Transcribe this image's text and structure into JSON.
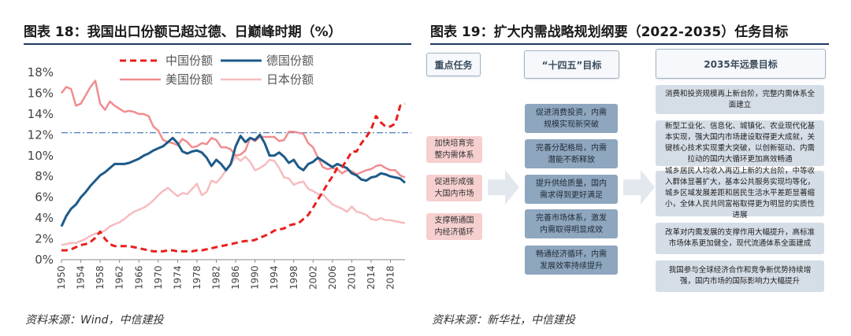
{
  "left": {
    "title": "图表 18：我国出口份额已超过德、日巅峰时期（%）",
    "source": "资料来源：Wind，中信建投"
  },
  "right": {
    "title": "图表 19：扩大内需战略规划纲要（2022-2035）任务目标",
    "source": "资料来源：新华社，中信建投",
    "col_heads": [
      "重点任务",
      "“十四五”目标",
      "2035年远景目标"
    ],
    "tasks": [
      "加快培育完整内需体系",
      "促进形成强大国内市场",
      "支撑畅通国内经济循环"
    ],
    "goals_14th": [
      "促进消费投资，内需规模实现新突破",
      "完善分配格局，内需潜能不断释放",
      "提升供给质量，国内需求得到更好满足",
      "完善市场体系，激发内需取得明显成效",
      "畅通经济循环，内需发展效率持续提升"
    ],
    "goals_2035": [
      "消费和投资规模再上新台阶，完整内需体系全面建立",
      "新型工业化、信息化、城镇化、农业现代化基本实现，强大国内市场建设取得更大成就，关键核心技术实现重大突破，以创新驱动、内需拉动的国内大循环更加高效畅通",
      "城乡居民人均收入再迈上新的大台阶，中等收入群体显著扩大，基本公共服务实现均等化，城乡区域发展差距和居民生活水平差距显著缩小，全体人民共同富裕取得更为明显的实质性进展",
      "改革对内需发展的支撑作用大幅提升，高标准市场体系更加健全，现代流通体系全面建成",
      "我国参与全球经济合作和竞争新优势持续增强，国内市场的国际影响力大幅提升"
    ]
  },
  "colors": {
    "china": "#e8201d",
    "germany": "#1d5a8a",
    "usa": "#f08d8f",
    "japan": "#f6bcbf",
    "refline": "#3a6fb0",
    "pink_box": "#f6cfcf",
    "blue_box": "#8ea6be",
    "grey_box": "#d5dde6"
  },
  "chart_data": {
    "type": "line",
    "xlabel": "",
    "ylabel": "",
    "ylim": [
      0,
      18
    ],
    "yticks": [
      "0%",
      "2%",
      "4%",
      "6%",
      "8%",
      "10%",
      "12%",
      "14%",
      "16%",
      "18%"
    ],
    "xticks": [
      "1950",
      "1954",
      "1958",
      "1962",
      "1966",
      "1970",
      "1974",
      "1978",
      "1982",
      "1986",
      "1990",
      "1994",
      "1998",
      "2002",
      "2006",
      "2010",
      "2014",
      "2018"
    ],
    "xlim": [
      1950,
      2021
    ],
    "reference_line": 12.2,
    "legend_position": "top",
    "years": [
      1950,
      1951,
      1952,
      1953,
      1954,
      1955,
      1956,
      1957,
      1958,
      1959,
      1960,
      1961,
      1962,
      1963,
      1964,
      1965,
      1966,
      1967,
      1968,
      1969,
      1970,
      1971,
      1972,
      1973,
      1974,
      1975,
      1976,
      1977,
      1978,
      1979,
      1980,
      1981,
      1982,
      1983,
      1984,
      1985,
      1986,
      1987,
      1988,
      1989,
      1990,
      1991,
      1992,
      1993,
      1994,
      1995,
      1996,
      1997,
      1998,
      1999,
      2000,
      2001,
      2002,
      2003,
      2004,
      2005,
      2006,
      2007,
      2008,
      2009,
      2010,
      2011,
      2012,
      2013,
      2014,
      2015,
      2016,
      2017,
      2018,
      2019,
      2020,
      2021
    ],
    "series": [
      {
        "name": "中国份额",
        "style": "dashed",
        "values": [
          0.9,
          0.9,
          1.0,
          1.2,
          1.4,
          1.5,
          1.7,
          2.1,
          2.7,
          2.0,
          1.5,
          1.3,
          1.3,
          1.3,
          1.3,
          1.2,
          1.1,
          1.0,
          0.9,
          0.8,
          0.8,
          0.8,
          0.9,
          0.9,
          0.8,
          0.8,
          0.8,
          0.8,
          0.9,
          0.9,
          1.0,
          1.1,
          1.2,
          1.3,
          1.4,
          1.5,
          1.6,
          1.7,
          1.8,
          1.8,
          1.9,
          2.1,
          2.3,
          2.5,
          2.8,
          2.9,
          3.0,
          3.3,
          3.4,
          3.5,
          3.9,
          4.3,
          5.0,
          5.8,
          6.5,
          7.3,
          8.0,
          8.8,
          8.9,
          9.6,
          10.4,
          10.4,
          11.2,
          11.8,
          12.5,
          13.8,
          13.2,
          12.8,
          12.8,
          13.1,
          14.8,
          15.0
        ]
      },
      {
        "name": "德国份额",
        "style": "solid",
        "values": [
          3.2,
          4.2,
          4.9,
          5.3,
          6.0,
          6.5,
          7.1,
          7.6,
          8.1,
          8.4,
          8.8,
          9.2,
          9.2,
          9.2,
          9.3,
          9.5,
          9.7,
          10.0,
          10.2,
          10.5,
          10.7,
          10.9,
          11.3,
          11.7,
          11.2,
          10.4,
          10.2,
          10.4,
          10.5,
          10.3,
          9.8,
          9.0,
          9.6,
          9.2,
          8.6,
          9.2,
          10.9,
          11.9,
          11.3,
          11.7,
          11.5,
          12.0,
          11.2,
          10.0,
          10.0,
          10.3,
          9.9,
          9.3,
          9.6,
          8.9,
          8.6,
          9.2,
          9.4,
          9.8,
          9.5,
          9.2,
          8.9,
          9.2,
          9.0,
          8.8,
          8.3,
          8.1,
          7.7,
          7.6,
          7.9,
          8.0,
          8.3,
          8.2,
          8.0,
          7.9,
          7.8,
          7.4
        ]
      },
      {
        "name": "美国份额",
        "style": "solid",
        "values": [
          16.0,
          16.6,
          16.4,
          14.8,
          15.0,
          15.8,
          16.6,
          17.2,
          15.0,
          14.4,
          15.2,
          14.8,
          14.5,
          14.2,
          14.3,
          14.2,
          14.0,
          14.0,
          13.8,
          12.8,
          12.4,
          11.5,
          11.3,
          11.2,
          11.0,
          11.6,
          11.3,
          10.8,
          10.9,
          11.2,
          11.1,
          11.7,
          11.5,
          10.8,
          10.8,
          10.6,
          10.0,
          10.1,
          10.5,
          11.7,
          11.4,
          11.8,
          11.8,
          11.8,
          11.8,
          11.4,
          11.5,
          12.3,
          12.3,
          12.2,
          12.1,
          11.2,
          10.8,
          9.8,
          8.9,
          8.7,
          8.8,
          8.7,
          8.3,
          8.6,
          8.5,
          8.2,
          8.4,
          8.6,
          8.7,
          9.0,
          9.1,
          8.8,
          8.6,
          8.6,
          8.1,
          7.9
        ]
      },
      {
        "name": "日本份额",
        "style": "solid",
        "values": [
          1.4,
          1.5,
          1.6,
          1.6,
          1.8,
          2.0,
          2.3,
          2.5,
          2.6,
          2.8,
          3.2,
          3.4,
          3.6,
          3.9,
          4.3,
          4.6,
          4.8,
          5.0,
          5.3,
          5.7,
          6.2,
          6.6,
          6.9,
          6.5,
          6.1,
          6.4,
          6.3,
          6.8,
          7.3,
          6.2,
          6.5,
          7.6,
          7.4,
          7.9,
          8.6,
          9.2,
          9.9,
          9.5,
          9.9,
          9.4,
          8.6,
          8.8,
          9.1,
          9.6,
          9.5,
          8.8,
          7.9,
          7.8,
          7.2,
          7.4,
          7.5,
          6.8,
          6.6,
          6.3,
          6.3,
          5.8,
          5.3,
          5.1,
          4.9,
          4.6,
          5.1,
          4.6,
          4.5,
          4.3,
          3.9,
          3.8,
          4.0,
          3.8,
          3.8,
          3.7,
          3.6,
          3.5
        ]
      }
    ]
  }
}
